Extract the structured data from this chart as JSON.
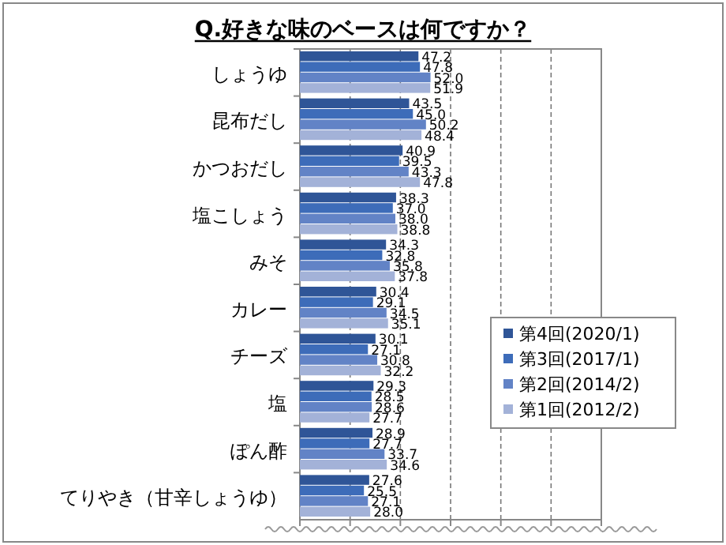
{
  "chart_data": {
    "type": "bar",
    "orientation": "horizontal",
    "title": "Q.好きな味のベースは何ですか？",
    "categories": [
      "しょうゆ",
      "昆布だし",
      "かつおだし",
      "塩こしょう",
      "みそ",
      "カレー",
      "チーズ",
      "塩",
      "ぽん酢",
      "てりやき（甘辛しょうゆ）"
    ],
    "series": [
      {
        "name": "第4回(2020/1)",
        "color": "#2f5597",
        "values": [
          47.2,
          43.5,
          40.9,
          38.3,
          34.3,
          30.4,
          30.1,
          29.3,
          28.9,
          27.6
        ],
        "value_labels": [
          "47.2",
          "43.5",
          "40.9",
          "38.3",
          "34.3",
          "30.4",
          "30.1",
          "29.3",
          "28.9",
          "27.6"
        ]
      },
      {
        "name": "第3回(2017/1)",
        "color": "#3d6cb9",
        "values": [
          47.8,
          45.0,
          39.5,
          37.0,
          32.8,
          29.1,
          27.1,
          28.5,
          27.7,
          25.5
        ],
        "value_labels": [
          "47.8",
          "45.0",
          "39.5",
          "37.0",
          "32.8",
          "29.1",
          "27.1",
          "28.5",
          "27.7",
          "25.5"
        ]
      },
      {
        "name": "第2回(2014/2)",
        "color": "#6283c6",
        "values": [
          52.0,
          50.2,
          43.3,
          38.0,
          35.8,
          34.5,
          30.8,
          28.6,
          33.7,
          27.1
        ],
        "value_labels": [
          "52.0",
          "50.2",
          "43.3",
          "38.0",
          "35.8",
          "34.5",
          "30.8",
          "28.6",
          "33.7",
          "27.1"
        ]
      },
      {
        "name": "第1回(2012/2)",
        "color": "#a3b2d8",
        "values": [
          51.9,
          48.4,
          47.8,
          38.8,
          37.8,
          35.1,
          32.2,
          27.7,
          34.6,
          28.0
        ],
        "value_labels": [
          "51.9",
          "48.4",
          "47.8",
          "38.8",
          "37.8",
          "35.1",
          "32.2",
          "27.7",
          "34.6",
          "28.0"
        ]
      }
    ],
    "xlim": [
      0,
      120
    ],
    "xticks": [
      {
        "value": 0,
        "label": null
      },
      {
        "value": 20,
        "label": null
      },
      {
        "value": 40,
        "label": null
      },
      {
        "value": 60,
        "label": null
      },
      {
        "value": 80,
        "label": null
      },
      {
        "value": 100,
        "label": null
      },
      {
        "value": 120,
        "label": null
      }
    ],
    "grid": "x",
    "legend": "bottom right"
  }
}
